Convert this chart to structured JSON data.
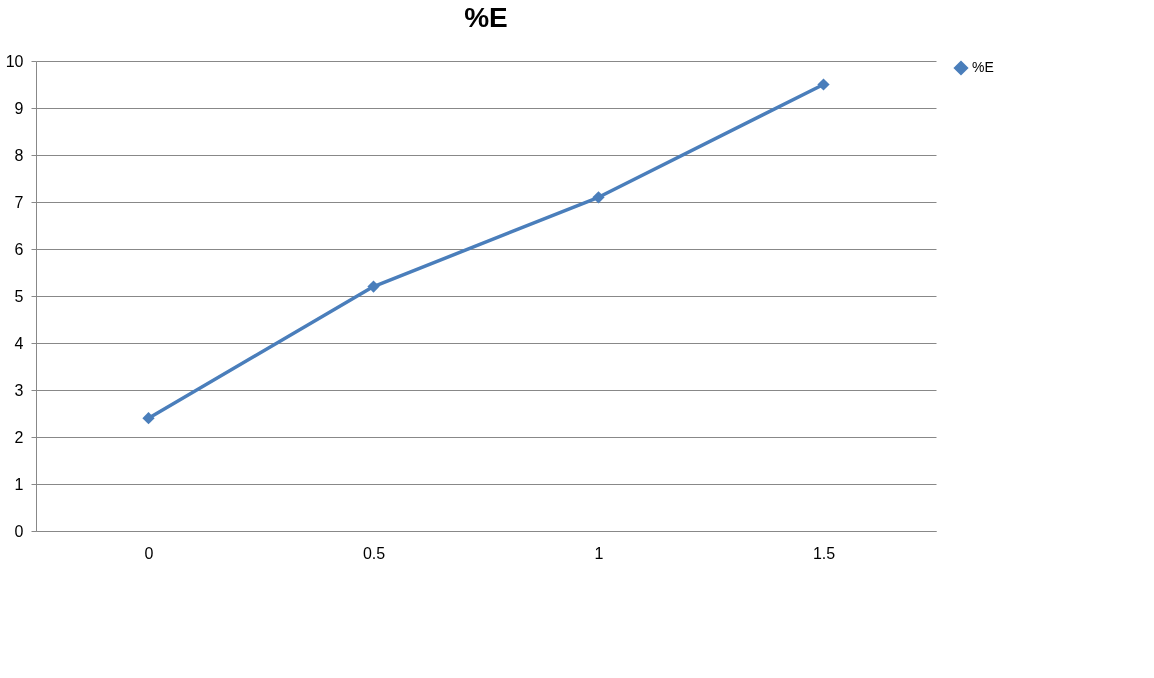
{
  "chart_data": {
    "type": "line",
    "title": "%E",
    "categories": [
      "0",
      "0.5",
      "1",
      "1.5"
    ],
    "series": [
      {
        "name": "%E",
        "color": "#4a7ebb",
        "values": [
          2.4,
          5.2,
          7.1,
          9.5
        ]
      }
    ],
    "ylim": [
      0,
      10
    ],
    "yticks": [
      0,
      1,
      2,
      3,
      4,
      5,
      6,
      7,
      8,
      9,
      10
    ],
    "grid": "y",
    "legend": "right",
    "marker": "diamond",
    "line_style": "solid"
  }
}
